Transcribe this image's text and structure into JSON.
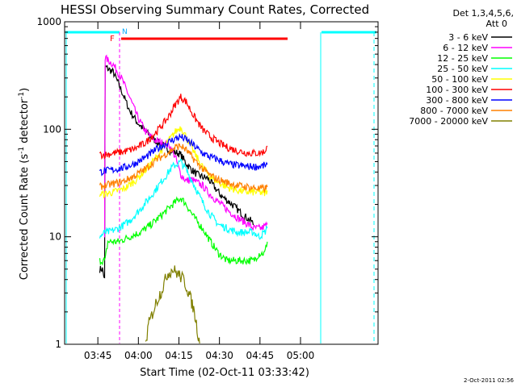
{
  "chart_data": {
    "type": "line",
    "title": "HESSI Observing Summary Count Rates, Corrected",
    "xlabel": "Start Time (02-Oct-11 03:33:42)",
    "ylabel_main": "Corrected Count Rate (s",
    "ylabel_exp1": "-1",
    "ylabel_mid": " detector",
    "ylabel_exp2": "-1",
    "ylabel_end": ")",
    "x_range_minutes": [
      0,
      116
    ],
    "y_scale": "log",
    "ylim": [
      1,
      1000
    ],
    "x_ticks": [
      {
        "minute": 12.3,
        "label": "03:45"
      },
      {
        "minute": 27.3,
        "label": "04:00"
      },
      {
        "minute": 42.3,
        "label": "04:15"
      },
      {
        "minute": 57.3,
        "label": "04:30"
      },
      {
        "minute": 72.3,
        "label": "04:45"
      },
      {
        "minute": 87.3,
        "label": "05:00"
      }
    ],
    "y_ticks": [
      {
        "value": 1,
        "label": "1"
      },
      {
        "value": 10,
        "label": "10"
      },
      {
        "value": 100,
        "label": "100"
      },
      {
        "value": 1000,
        "label": "1000"
      }
    ],
    "legend_header": [
      "Det 1,3,4,5,6,",
      "Att 0"
    ],
    "series": [
      {
        "name": "3 - 6 keV",
        "color": "#000000",
        "points": [
          [
            13,
            5
          ],
          [
            14,
            5
          ],
          [
            14.8,
            4
          ],
          [
            15,
            380
          ],
          [
            18,
            340
          ],
          [
            21,
            230
          ],
          [
            24,
            150
          ],
          [
            27,
            115
          ],
          [
            30,
            95
          ],
          [
            33,
            80
          ],
          [
            36,
            72
          ],
          [
            39,
            63
          ],
          [
            40,
            62
          ],
          [
            42,
            60
          ],
          [
            43,
            58
          ],
          [
            45,
            48
          ],
          [
            47,
            42
          ],
          [
            49,
            38
          ],
          [
            51,
            36
          ],
          [
            53,
            35
          ],
          [
            55,
            30
          ],
          [
            58,
            24
          ],
          [
            62,
            20
          ],
          [
            66,
            16
          ],
          [
            69,
            14
          ],
          [
            70,
            13
          ]
        ]
      },
      {
        "name": "6 - 12 keV",
        "color": "#ff00ff",
        "points": [
          [
            14.8,
            10
          ],
          [
            15,
            460
          ],
          [
            18,
            400
          ],
          [
            21,
            300
          ],
          [
            24,
            200
          ],
          [
            27,
            130
          ],
          [
            30,
            95
          ],
          [
            33,
            80
          ],
          [
            36,
            75
          ],
          [
            39,
            70
          ],
          [
            41,
            55
          ],
          [
            42,
            45
          ],
          [
            43,
            38
          ],
          [
            45,
            33
          ],
          [
            47,
            34
          ],
          [
            49,
            32
          ],
          [
            51,
            30
          ],
          [
            53,
            26
          ],
          [
            56,
            22
          ],
          [
            60,
            18
          ],
          [
            64,
            15
          ],
          [
            68,
            13
          ],
          [
            70,
            12
          ],
          [
            73,
            12
          ],
          [
            75,
            13
          ]
        ]
      },
      {
        "name": "12 - 25 keV",
        "color": "#00ff00",
        "points": [
          [
            13,
            6
          ],
          [
            15,
            6
          ],
          [
            16,
            9
          ],
          [
            20,
            9
          ],
          [
            24,
            10
          ],
          [
            28,
            11
          ],
          [
            32,
            13
          ],
          [
            36,
            16
          ],
          [
            40,
            20
          ],
          [
            42,
            22
          ],
          [
            43,
            23
          ],
          [
            45,
            20
          ],
          [
            48,
            15
          ],
          [
            51,
            12
          ],
          [
            54,
            9
          ],
          [
            57,
            7
          ],
          [
            60,
            6
          ],
          [
            64,
            6
          ],
          [
            68,
            6
          ],
          [
            70,
            6
          ],
          [
            72,
            7
          ],
          [
            74,
            7
          ],
          [
            75,
            9
          ]
        ]
      },
      {
        "name": "25 - 50 keV",
        "color": "#00ffff",
        "points": [
          [
            13,
            10
          ],
          [
            15,
            11
          ],
          [
            16,
            11
          ],
          [
            20,
            12
          ],
          [
            24,
            14
          ],
          [
            28,
            18
          ],
          [
            32,
            24
          ],
          [
            36,
            33
          ],
          [
            40,
            45
          ],
          [
            42,
            48
          ],
          [
            43,
            50
          ],
          [
            45,
            42
          ],
          [
            48,
            30
          ],
          [
            51,
            21
          ],
          [
            54,
            16
          ],
          [
            57,
            13
          ],
          [
            60,
            12
          ],
          [
            64,
            11
          ],
          [
            68,
            11
          ],
          [
            70,
            11
          ],
          [
            72,
            10
          ],
          [
            74,
            11
          ],
          [
            75,
            12
          ]
        ]
      },
      {
        "name": "50 - 100 keV",
        "color": "#ffff00",
        "points": [
          [
            13,
            25
          ],
          [
            15,
            25
          ],
          [
            18,
            26
          ],
          [
            22,
            28
          ],
          [
            26,
            33
          ],
          [
            30,
            42
          ],
          [
            34,
            55
          ],
          [
            38,
            75
          ],
          [
            41,
            95
          ],
          [
            43,
            105
          ],
          [
            45,
            85
          ],
          [
            48,
            60
          ],
          [
            51,
            45
          ],
          [
            54,
            36
          ],
          [
            57,
            32
          ],
          [
            60,
            29
          ],
          [
            64,
            27
          ],
          [
            68,
            26
          ],
          [
            72,
            26
          ],
          [
            74,
            25
          ],
          [
            75,
            27
          ]
        ]
      },
      {
        "name": "100 - 300 keV",
        "color": "#ff0000",
        "points": [
          [
            13,
            58
          ],
          [
            15,
            58
          ],
          [
            18,
            60
          ],
          [
            22,
            62
          ],
          [
            26,
            66
          ],
          [
            30,
            75
          ],
          [
            34,
            95
          ],
          [
            38,
            125
          ],
          [
            41,
            170
          ],
          [
            43,
            200
          ],
          [
            45,
            180
          ],
          [
            48,
            130
          ],
          [
            51,
            100
          ],
          [
            54,
            85
          ],
          [
            57,
            75
          ],
          [
            60,
            68
          ],
          [
            64,
            63
          ],
          [
            68,
            60
          ],
          [
            72,
            60
          ],
          [
            74,
            62
          ],
          [
            75,
            70
          ]
        ]
      },
      {
        "name": "300 - 800 keV",
        "color": "#0000ff",
        "points": [
          [
            13,
            40
          ],
          [
            15,
            41
          ],
          [
            18,
            42
          ],
          [
            22,
            44
          ],
          [
            26,
            48
          ],
          [
            30,
            55
          ],
          [
            34,
            65
          ],
          [
            38,
            75
          ],
          [
            41,
            82
          ],
          [
            43,
            85
          ],
          [
            45,
            80
          ],
          [
            48,
            70
          ],
          [
            51,
            60
          ],
          [
            54,
            55
          ],
          [
            57,
            52
          ],
          [
            60,
            48
          ],
          [
            64,
            46
          ],
          [
            68,
            45
          ],
          [
            72,
            45
          ],
          [
            74,
            46
          ],
          [
            75,
            47
          ]
        ]
      },
      {
        "name": "800 - 7000 keV",
        "color": "#ff8000",
        "points": [
          [
            13,
            29
          ],
          [
            15,
            30
          ],
          [
            18,
            31
          ],
          [
            22,
            33
          ],
          [
            26,
            37
          ],
          [
            30,
            43
          ],
          [
            34,
            52
          ],
          [
            38,
            60
          ],
          [
            41,
            68
          ],
          [
            43,
            70
          ],
          [
            45,
            64
          ],
          [
            48,
            52
          ],
          [
            51,
            43
          ],
          [
            54,
            37
          ],
          [
            57,
            34
          ],
          [
            60,
            32
          ],
          [
            64,
            30
          ],
          [
            68,
            29
          ],
          [
            72,
            28
          ],
          [
            74,
            28
          ],
          [
            75,
            29
          ]
        ]
      },
      {
        "name": "7000 - 20000 keV",
        "color": "#808000",
        "points": [
          [
            30,
            1
          ],
          [
            31,
            1.5
          ],
          [
            34,
            2.5
          ],
          [
            36,
            3.2
          ],
          [
            38,
            4.5
          ],
          [
            40,
            5
          ],
          [
            42,
            4.5
          ],
          [
            44,
            4
          ],
          [
            46,
            3
          ],
          [
            48,
            2
          ],
          [
            49.5,
            1.2
          ],
          [
            50,
            1
          ]
        ]
      }
    ],
    "annotations": {
      "flag_F": "F",
      "flag_N": "N",
      "stamp": "2-Oct-2011 02:56"
    }
  }
}
